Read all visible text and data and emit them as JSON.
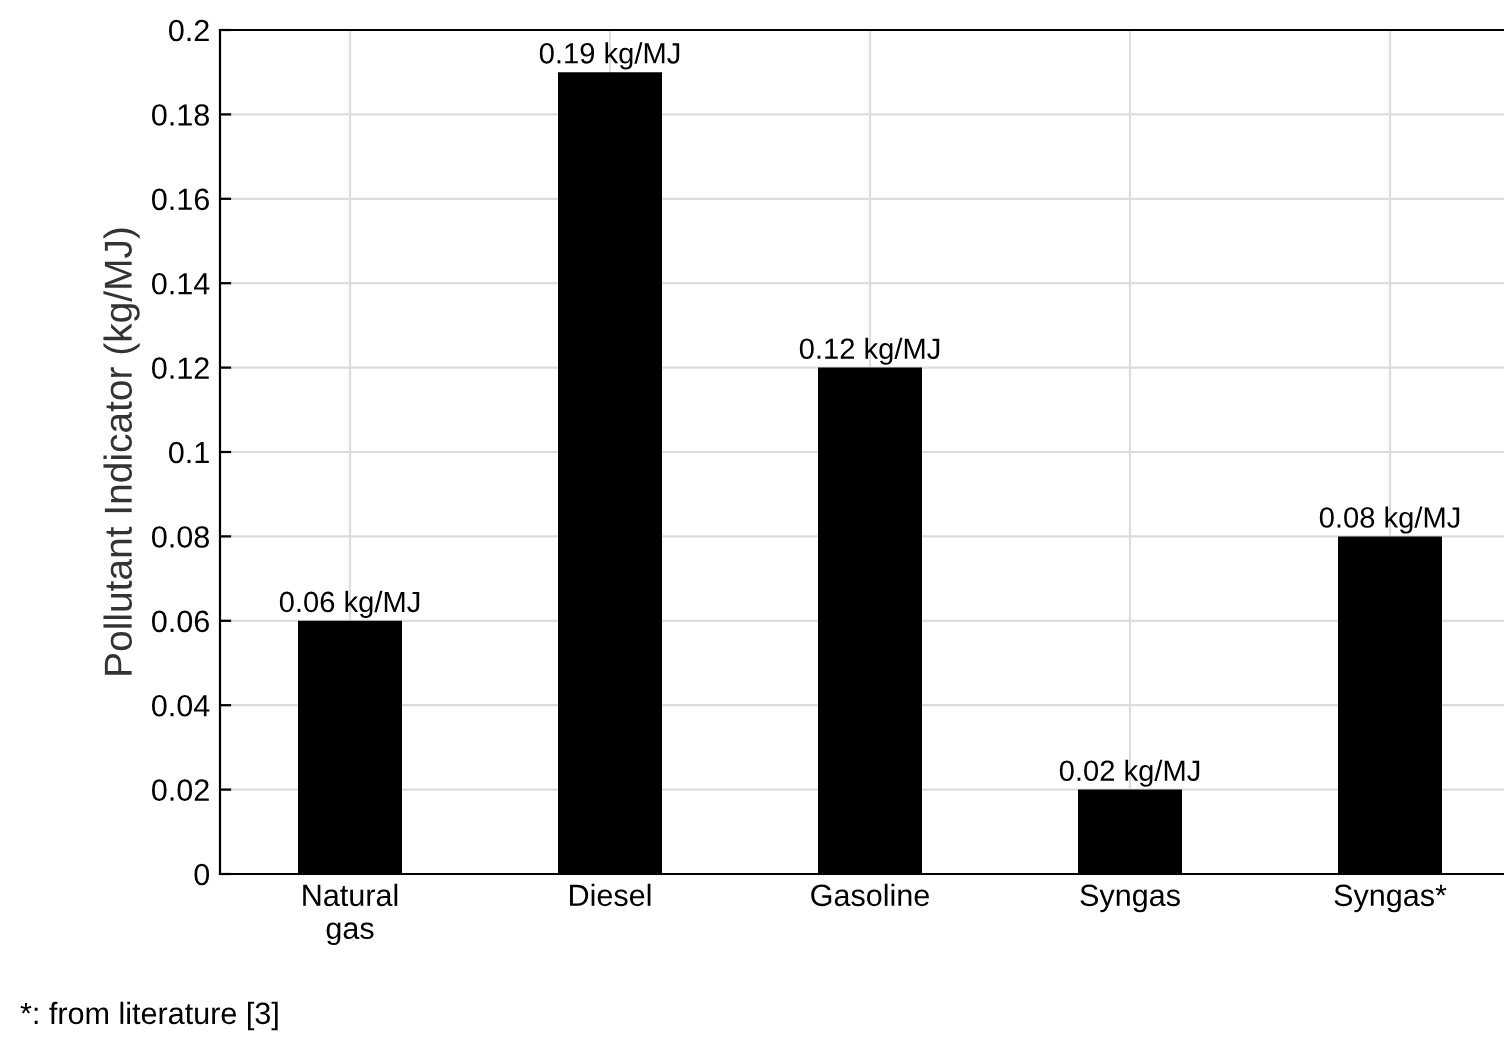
{
  "chart_data": {
    "type": "bar",
    "ylabel": "Pollutant Indicator (kg/MJ)",
    "categories": [
      "Natural\ngas",
      "Diesel",
      "Gasoline",
      "Syngas",
      "Syngas*"
    ],
    "values": [
      0.06,
      0.19,
      0.12,
      0.02,
      0.08
    ],
    "value_labels": [
      "0.06 kg/MJ",
      "0.19 kg/MJ",
      "0.12 kg/MJ",
      "0.02 kg/MJ",
      "0.08 kg/MJ"
    ],
    "color": "#000000",
    "ylim": [
      0,
      0.2
    ],
    "yticks": [
      0,
      0.02,
      0.04,
      0.06,
      0.08,
      0.1,
      0.12,
      0.14,
      0.16,
      0.18,
      0.2
    ],
    "grid": true,
    "annotations": [
      "*: from literature [3]"
    ]
  }
}
